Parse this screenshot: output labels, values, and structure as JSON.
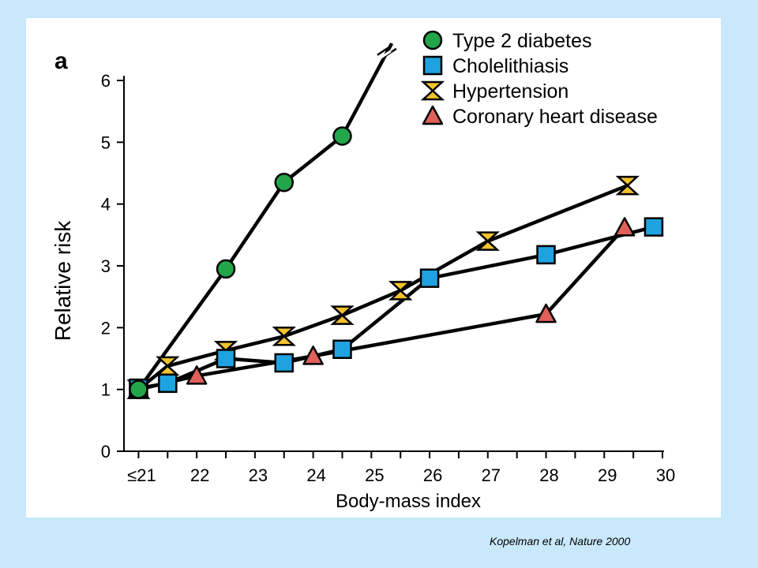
{
  "caption": "Kopelman et al, Nature 2000",
  "chart_data": {
    "type": "line",
    "panel_label": "a",
    "xlabel": "Body-mass index",
    "ylabel": "Relative risk",
    "xlim": [
      20.75,
      30
    ],
    "ylim": [
      0,
      6
    ],
    "x_ticks": [
      21,
      22,
      23,
      24,
      25,
      26,
      27,
      28,
      29,
      30
    ],
    "x_tick_labels": [
      "≤21",
      "22",
      "23",
      "24",
      "25",
      "26",
      "27",
      "28",
      "29",
      "30"
    ],
    "y_ticks": [
      0,
      1,
      2,
      3,
      4,
      5,
      6
    ],
    "y_tick_labels": [
      "0",
      "1",
      "2",
      "3",
      "4",
      "5",
      "6"
    ],
    "legend_position": "top-right",
    "axis_break": "top of type 2 diabetes line",
    "series": [
      {
        "name": "Type 2 diabetes",
        "marker": "circle",
        "color": "#22a64a",
        "x": [
          21,
          22.5,
          23.5,
          24.5
        ],
        "y": [
          1.0,
          2.95,
          4.35,
          5.1
        ],
        "continues_to": [
          25.35,
          6.6
        ]
      },
      {
        "name": "Cholelithiasis",
        "marker": "square",
        "color": "#1fa2e0",
        "x": [
          21,
          21.5,
          22.5,
          23.5,
          24.5,
          26,
          28,
          29.85
        ],
        "y": [
          1.02,
          1.1,
          1.5,
          1.43,
          1.65,
          2.8,
          3.18,
          3.63
        ]
      },
      {
        "name": "Hypertension",
        "marker": "hourglass",
        "color": "#f2c32c",
        "x": [
          21,
          21.5,
          22.5,
          23.5,
          24.5,
          25.5,
          27,
          29.4
        ],
        "y": [
          1.0,
          1.38,
          1.63,
          1.86,
          2.2,
          2.6,
          3.4,
          4.3
        ]
      },
      {
        "name": "Coronary heart disease",
        "marker": "triangle",
        "color": "#e0605a",
        "x": [
          21,
          22,
          24,
          28,
          29.35
        ],
        "y": [
          1.0,
          1.22,
          1.54,
          2.22,
          3.62
        ]
      }
    ]
  }
}
